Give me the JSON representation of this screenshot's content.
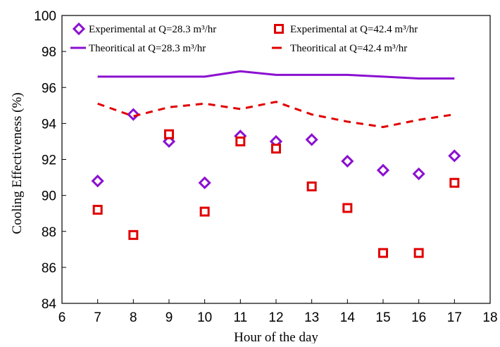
{
  "chart_data": {
    "type": "scatter",
    "xlabel": "Hour of the day",
    "ylabel": "Cooling Effectiveness (%)",
    "xlim": [
      6,
      18
    ],
    "ylim": [
      84,
      100
    ],
    "xticks": [
      6,
      7,
      8,
      9,
      10,
      11,
      12,
      13,
      14,
      15,
      16,
      17,
      18
    ],
    "yticks": [
      84,
      86,
      88,
      90,
      92,
      94,
      96,
      98,
      100
    ],
    "grid": false,
    "legend_placement": "top",
    "series": [
      {
        "name": "Experimental at Q=28.3 m³/hr",
        "kind": "marker",
        "marker": "diamond",
        "color": "#8B10D0",
        "x": [
          7,
          8,
          9,
          10,
          11,
          12,
          13,
          14,
          15,
          16,
          17
        ],
        "y": [
          90.8,
          94.5,
          93.0,
          90.7,
          93.3,
          93.0,
          93.1,
          91.9,
          91.4,
          91.2,
          92.2
        ]
      },
      {
        "name": "Experimental  at  Q=42.4  m³/hr",
        "kind": "marker",
        "marker": "square",
        "color": "#E00000",
        "x": [
          7,
          8,
          9,
          10,
          11,
          12,
          13,
          14,
          15,
          16,
          17
        ],
        "y": [
          89.2,
          87.8,
          93.4,
          89.1,
          93.0,
          92.6,
          90.5,
          89.3,
          86.8,
          86.8,
          90.7
        ]
      },
      {
        "name": "Theoritical at Q=28.3 m³/hr",
        "kind": "line",
        "dash": "solid",
        "color": "#8B10D0",
        "x": [
          7,
          8,
          9,
          10,
          11,
          12,
          13,
          14,
          15,
          16,
          17
        ],
        "y": [
          96.6,
          96.6,
          96.6,
          96.6,
          96.9,
          96.7,
          96.7,
          96.7,
          96.6,
          96.5,
          96.5
        ]
      },
      {
        "name": "Theoritical  at  Q=42.4  m³/hr",
        "kind": "line",
        "dash": "dashed",
        "color": "#E00000",
        "x": [
          7,
          8,
          9,
          10,
          11,
          12,
          13,
          14,
          15,
          16,
          17
        ],
        "y": [
          95.1,
          94.4,
          94.9,
          95.1,
          94.8,
          95.2,
          94.5,
          94.1,
          93.8,
          94.2,
          94.5
        ]
      }
    ]
  }
}
